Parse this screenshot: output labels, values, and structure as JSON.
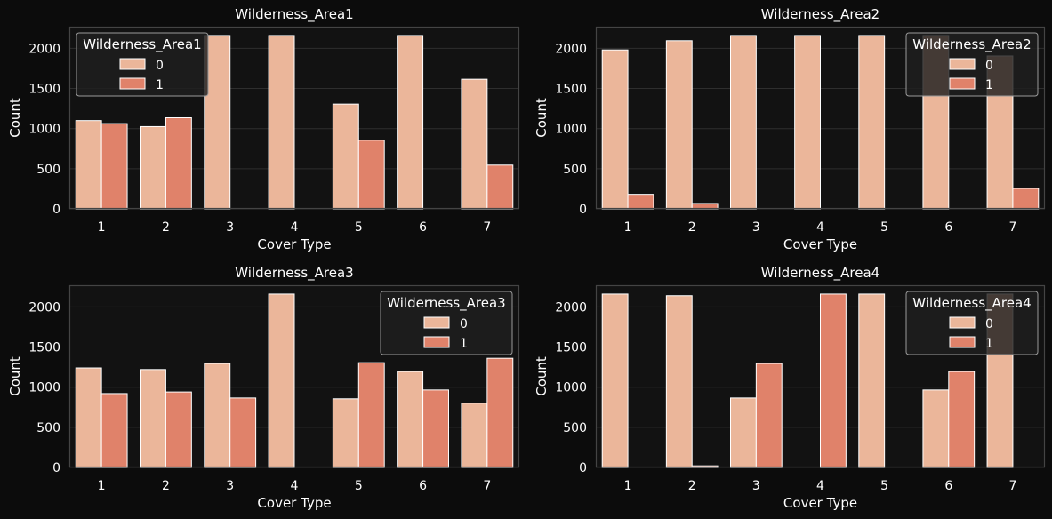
{
  "theme": {
    "figure_bg": "#0c0c0c",
    "axes_bg": "#121212",
    "grid": "#2e2e2e",
    "spine": "#444444",
    "text": "#ffffff",
    "bar_edge": "#ffffff",
    "legend_bg": "#1e1e1e",
    "legend_edge": "#9a9a9a",
    "palette": [
      "#ebb69a",
      "#e0826a"
    ]
  },
  "chart_data": [
    {
      "type": "bar",
      "title": "Wilderness_Area1",
      "xlabel": "Cover Type",
      "ylabel": "Count",
      "categories": [
        "1",
        "2",
        "3",
        "4",
        "5",
        "6",
        "7"
      ],
      "ylim": [
        0,
        2270
      ],
      "yticks": [
        0,
        500,
        1000,
        1500,
        2000
      ],
      "grid": true,
      "legend": {
        "title": "Wilderness_Area1",
        "placement": "upper-left"
      },
      "series": [
        {
          "name": "0",
          "values": [
            1100,
            1025,
            2160,
            2160,
            1305,
            2160,
            1615
          ]
        },
        {
          "name": "1",
          "values": [
            1062,
            1135,
            0,
            0,
            855,
            0,
            545
          ]
        }
      ]
    },
    {
      "type": "bar",
      "title": "Wilderness_Area2",
      "xlabel": "Cover Type",
      "ylabel": "Count",
      "categories": [
        "1",
        "2",
        "3",
        "4",
        "5",
        "6",
        "7"
      ],
      "ylim": [
        0,
        2270
      ],
      "yticks": [
        0,
        500,
        1000,
        1500,
        2000
      ],
      "grid": true,
      "legend": {
        "title": "Wilderness_Area2",
        "placement": "upper-right"
      },
      "series": [
        {
          "name": "0",
          "values": [
            1980,
            2095,
            2160,
            2160,
            2160,
            2160,
            1905
          ]
        },
        {
          "name": "1",
          "values": [
            181,
            67,
            0,
            0,
            0,
            0,
            255
          ]
        }
      ]
    },
    {
      "type": "bar",
      "title": "Wilderness_Area3",
      "xlabel": "Cover Type",
      "ylabel": "Count",
      "categories": [
        "1",
        "2",
        "3",
        "4",
        "5",
        "6",
        "7"
      ],
      "ylim": [
        0,
        2270
      ],
      "yticks": [
        0,
        500,
        1000,
        1500,
        2000
      ],
      "grid": true,
      "legend": {
        "title": "Wilderness_Area3",
        "placement": "upper-right"
      },
      "series": [
        {
          "name": "0",
          "values": [
            1240,
            1220,
            1295,
            2160,
            855,
            1195,
            800
          ]
        },
        {
          "name": "1",
          "values": [
            920,
            940,
            865,
            0,
            1305,
            965,
            1360
          ]
        }
      ]
    },
    {
      "type": "bar",
      "title": "Wilderness_Area4",
      "xlabel": "Cover Type",
      "ylabel": "Count",
      "categories": [
        "1",
        "2",
        "3",
        "4",
        "5",
        "6",
        "7"
      ],
      "ylim": [
        0,
        2270
      ],
      "yticks": [
        0,
        500,
        1000,
        1500,
        2000
      ],
      "grid": true,
      "legend": {
        "title": "Wilderness_Area4",
        "placement": "upper-right"
      },
      "series": [
        {
          "name": "0",
          "values": [
            2160,
            2140,
            865,
            0,
            2160,
            965,
            2160
          ]
        },
        {
          "name": "1",
          "values": [
            0,
            20,
            1295,
            2160,
            0,
            1195,
            0
          ]
        }
      ]
    }
  ]
}
